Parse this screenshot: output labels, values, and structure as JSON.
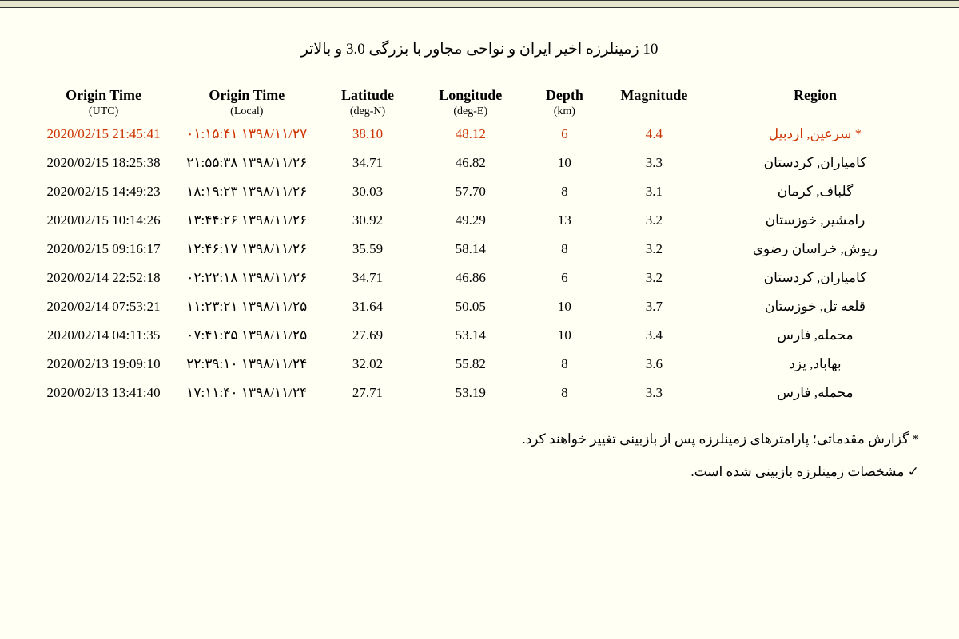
{
  "title": "10 زمینلرزه اخیر ایران و نواحی مجاور با بزرگی 3.0 و بالاتر",
  "columns": {
    "utc": {
      "label": "Origin Time",
      "sub": "(UTC)"
    },
    "local": {
      "label": "Origin Time",
      "sub": "(Local)"
    },
    "lat": {
      "label": "Latitude",
      "sub": "(deg-N)"
    },
    "lon": {
      "label": "Longitude",
      "sub": "(deg-E)"
    },
    "dep": {
      "label": "Depth",
      "sub": "(km)"
    },
    "mag": {
      "label": "Magnitude",
      "sub": ""
    },
    "reg": {
      "label": "Region",
      "sub": ""
    }
  },
  "rows": [
    {
      "utc": "2020/02/15 21:45:41",
      "local": "۱۳۹۸/۱۱/۲۷ ۰۱:۱۵:۴۱",
      "lat": "38.10",
      "lon": "48.12",
      "dep": "6",
      "mag": "4.4",
      "reg": "* سرعین, اردبیل",
      "highlight": true
    },
    {
      "utc": "2020/02/15 18:25:38",
      "local": "۱۳۹۸/۱۱/۲۶ ۲۱:۵۵:۳۸",
      "lat": "34.71",
      "lon": "46.82",
      "dep": "10",
      "mag": "3.3",
      "reg": "کامیاران, کردستان",
      "highlight": false
    },
    {
      "utc": "2020/02/15 14:49:23",
      "local": "۱۳۹۸/۱۱/۲۶ ۱۸:۱۹:۲۳",
      "lat": "30.03",
      "lon": "57.70",
      "dep": "8",
      "mag": "3.1",
      "reg": "گلباف, کرمان",
      "highlight": false
    },
    {
      "utc": "2020/02/15 10:14:26",
      "local": "۱۳۹۸/۱۱/۲۶ ۱۳:۴۴:۲۶",
      "lat": "30.92",
      "lon": "49.29",
      "dep": "13",
      "mag": "3.2",
      "reg": "رامشیر, خوزستان",
      "highlight": false
    },
    {
      "utc": "2020/02/15 09:16:17",
      "local": "۱۳۹۸/۱۱/۲۶ ۱۲:۴۶:۱۷",
      "lat": "35.59",
      "lon": "58.14",
      "dep": "8",
      "mag": "3.2",
      "reg": "ریوش, خراسان رضوي",
      "highlight": false
    },
    {
      "utc": "2020/02/14 22:52:18",
      "local": "۱۳۹۸/۱۱/۲۶ ۰۲:۲۲:۱۸",
      "lat": "34.71",
      "lon": "46.86",
      "dep": "6",
      "mag": "3.2",
      "reg": "کامیاران, کردستان",
      "highlight": false
    },
    {
      "utc": "2020/02/14 07:53:21",
      "local": "۱۳۹۸/۱۱/۲۵ ۱۱:۲۳:۲۱",
      "lat": "31.64",
      "lon": "50.05",
      "dep": "10",
      "mag": "3.7",
      "reg": "قلعه تل, خوزستان",
      "highlight": false
    },
    {
      "utc": "2020/02/14 04:11:35",
      "local": "۱۳۹۸/۱۱/۲۵ ۰۷:۴۱:۳۵",
      "lat": "27.69",
      "lon": "53.14",
      "dep": "10",
      "mag": "3.4",
      "reg": "محمله, فارس",
      "highlight": false
    },
    {
      "utc": "2020/02/13 19:09:10",
      "local": "۱۳۹۸/۱۱/۲۴ ۲۲:۳۹:۱۰",
      "lat": "32.02",
      "lon": "55.82",
      "dep": "8",
      "mag": "3.6",
      "reg": "بهاباد, یزد",
      "highlight": false
    },
    {
      "utc": "2020/02/13 13:41:40",
      "local": "۱۳۹۸/۱۱/۲۴ ۱۷:۱۱:۴۰",
      "lat": "27.71",
      "lon": "53.19",
      "dep": "8",
      "mag": "3.3",
      "reg": "محمله, فارس",
      "highlight": false
    }
  ],
  "footnotes": {
    "a": "* گزارش مقدماتی؛ پارامترهای زمینلرزه پس از بازبینی تغییر خواهند کرد.",
    "b": "✓ مشخصات زمینلرزه بازبینی شده است."
  },
  "colors": {
    "background": "#fffff4",
    "text": "#000000",
    "highlight": "#cc3300",
    "bar": "#e6e6cc"
  }
}
